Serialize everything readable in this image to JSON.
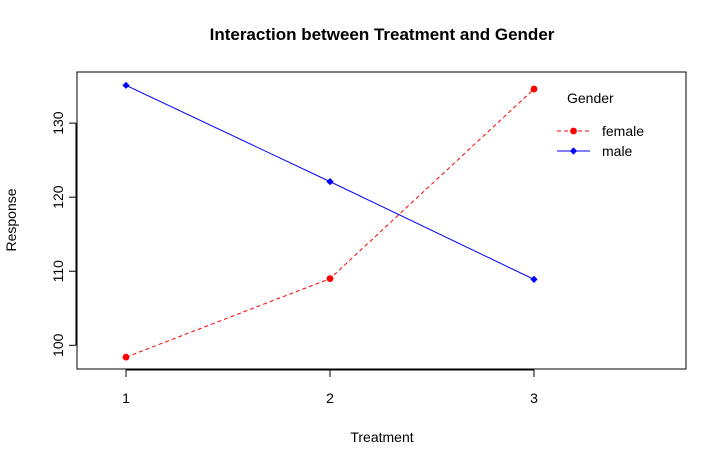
{
  "chart_data": {
    "type": "line",
    "title": "Interaction between Treatment and Gender",
    "xlabel": "Treatment",
    "ylabel": "Response",
    "categories": [
      "1",
      "2",
      "3"
    ],
    "yticks": [
      100,
      110,
      120,
      130
    ],
    "ylim": [
      96.8,
      136.9
    ],
    "grid": false,
    "legend": {
      "title": "Gender",
      "position": "top-right"
    },
    "series": [
      {
        "name": "female",
        "values": [
          98.4,
          109.0,
          134.6
        ],
        "color": "#ff0000",
        "linestyle": "dashed",
        "marker": "circle"
      },
      {
        "name": "male",
        "values": [
          135.1,
          122.1,
          108.9
        ],
        "color": "#0000ff",
        "linestyle": "solid",
        "marker": "diamond"
      }
    ]
  }
}
